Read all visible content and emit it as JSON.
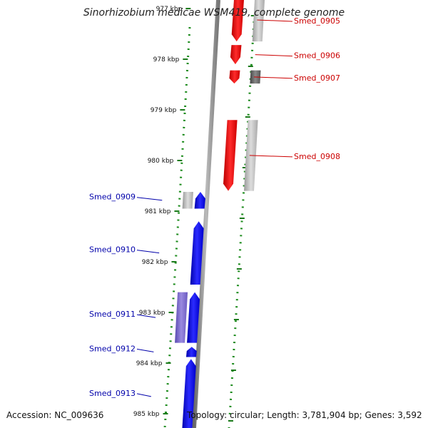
{
  "title": "Sinorhizobium medicae WSM419, complete genome",
  "footer": {
    "accession": "Accession: NC_009636",
    "summary": "Topology: circular; Length: 3,781,904 bp; Genes: 3,592"
  },
  "colors": {
    "forward_strand": "#0000ff",
    "reverse_strand": "#ff0000",
    "forward_label": "#0000aa",
    "reverse_label": "#cc0000",
    "tick": "#1a7a1a",
    "backbone": "#888888"
  },
  "scale": {
    "ticks": [
      {
        "label": "977 kbp",
        "kbp": 977
      },
      {
        "label": "978 kbp",
        "kbp": 978
      },
      {
        "label": "979 kbp",
        "kbp": 979
      },
      {
        "label": "980 kbp",
        "kbp": 980
      },
      {
        "label": "981 kbp",
        "kbp": 981
      },
      {
        "label": "982 kbp",
        "kbp": 982
      },
      {
        "label": "983 kbp",
        "kbp": 983
      },
      {
        "label": "984 kbp",
        "kbp": 984
      },
      {
        "label": "985 kbp",
        "kbp": 985
      }
    ]
  },
  "genes": [
    {
      "name": "Smed_0905",
      "strand": "reverse",
      "start_kbp": 976.8,
      "end_kbp": 977.65
    },
    {
      "name": "Smed_0906",
      "strand": "reverse",
      "start_kbp": 977.72,
      "end_kbp": 978.1
    },
    {
      "name": "Smed_0907",
      "strand": "reverse",
      "start_kbp": 978.22,
      "end_kbp": 978.48
    },
    {
      "name": "Smed_0908",
      "strand": "reverse",
      "start_kbp": 979.2,
      "end_kbp": 980.6
    },
    {
      "name": "Smed_0909",
      "strand": "forward",
      "start_kbp": 980.62,
      "end_kbp": 980.95
    },
    {
      "name": "Smed_0910",
      "strand": "forward",
      "start_kbp": 981.2,
      "end_kbp": 982.45
    },
    {
      "name": "Smed_0911",
      "strand": "forward",
      "start_kbp": 982.6,
      "end_kbp": 983.6
    },
    {
      "name": "Smed_0912",
      "strand": "forward",
      "start_kbp": 983.68,
      "end_kbp": 983.88
    },
    {
      "name": "Smed_0913",
      "strand": "forward",
      "start_kbp": 983.92,
      "end_kbp": 985.4
    }
  ]
}
